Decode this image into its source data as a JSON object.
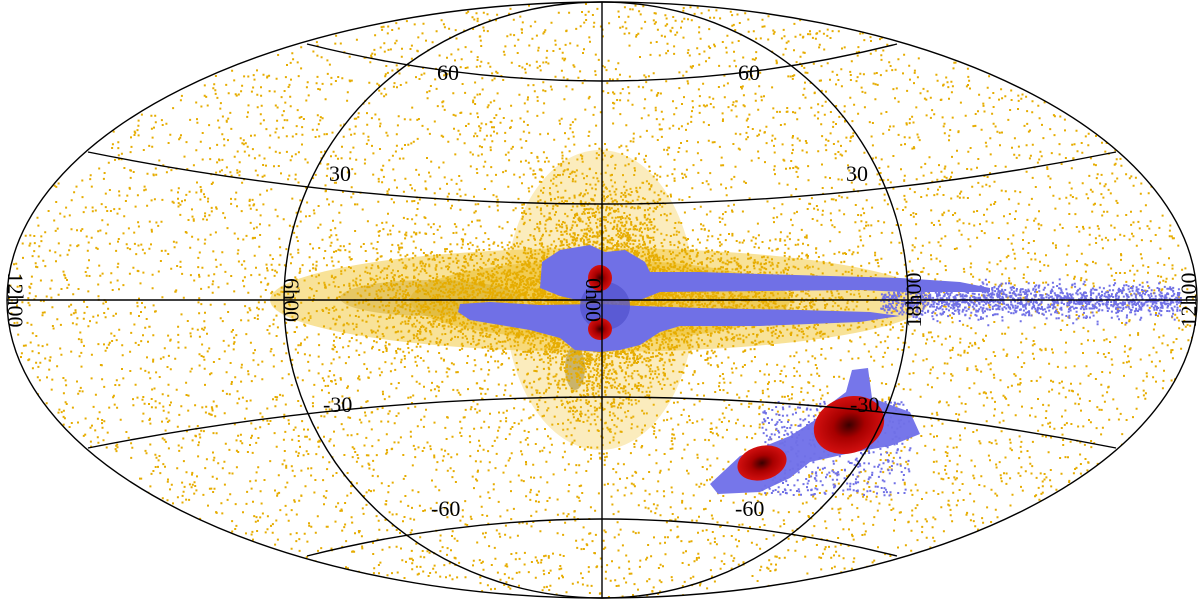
{
  "projection": "hammer-aitoff",
  "colors": {
    "background": "#ffffff",
    "grid": "#000000",
    "sources_all": "#e6ac00",
    "sources_selected": "#7070e6",
    "density_peak": "#c00000"
  },
  "labels": {
    "lat_upper_left_60": "60",
    "lat_upper_right_60": "60",
    "lat_upper_left_30": "30",
    "lat_upper_right_30": "30",
    "lat_lower_left_30": "-30",
    "lat_lower_right_30": "-30",
    "lat_lower_left_60": "-60",
    "lat_lower_right_60": "-60",
    "lon_left_edge": "12h00",
    "lon_left_6h": "6h00",
    "lon_center": "0h00",
    "lon_right_18h": "18h00",
    "lon_right_edge": "12h00"
  }
}
